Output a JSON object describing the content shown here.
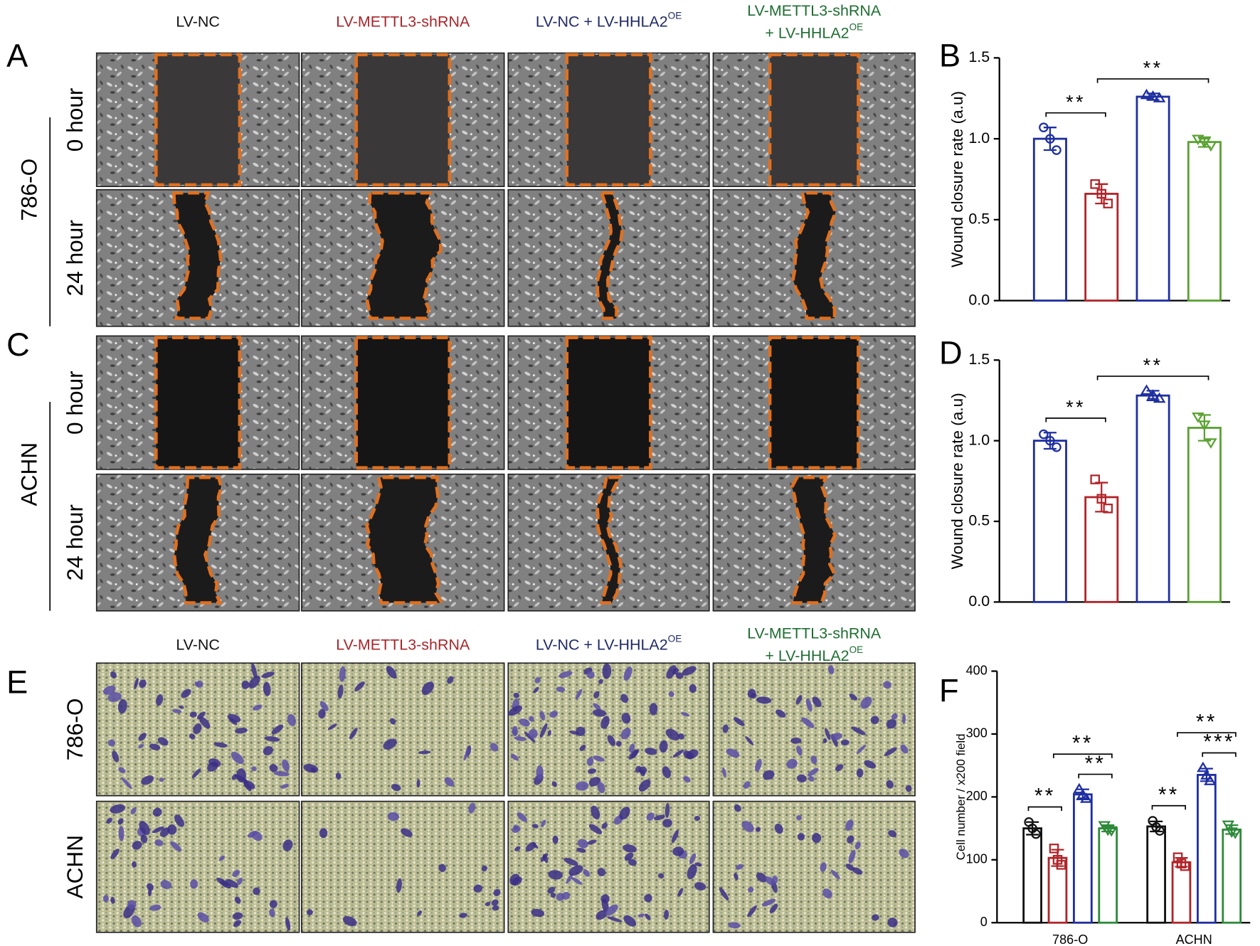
{
  "panel_labels": [
    "A",
    "B",
    "C",
    "D",
    "E",
    "F"
  ],
  "wound_headers": [
    {
      "text": "LV-NC",
      "color": "#111111"
    },
    {
      "text": "LV-METTL3-shRNA",
      "color": "#a8262b"
    },
    {
      "text": "LV-NC + LV-HHLA2",
      "sup": "OE",
      "color": "#1f2a66"
    },
    {
      "lines": [
        {
          "text": "LV-METTL3-shRNA"
        },
        {
          "text": "+ LV-HHLA2",
          "sup": "OE"
        }
      ],
      "color": "#1e6e32"
    }
  ],
  "transwell_headers": [
    {
      "text": "LV-NC",
      "color": "#111111"
    },
    {
      "text": "LV-METTL3-shRNA",
      "color": "#a8262b"
    },
    {
      "text": "LV-NC + LV-HHLA2",
      "sup": "OE",
      "color": "#1f2a66"
    },
    {
      "lines": [
        {
          "text": "LV-METTL3-shRNA"
        },
        {
          "text": "+ LV-HHLA2",
          "sup": "OE"
        }
      ],
      "color": "#1e6e32"
    }
  ],
  "wound_cell_lines": [
    "786-O",
    "ACHN"
  ],
  "time_labels": [
    "0 hour",
    "24 hour"
  ],
  "transwell_cell_lines": [
    "786-O",
    "ACHN"
  ],
  "chart_data": [
    {
      "type": "bar",
      "ylabel": "Wound closure rate (a.u)",
      "ylim": [
        0,
        1.5
      ],
      "yticks": [
        {
          "value": 0,
          "label": "0.0"
        },
        0.5,
        {
          "value": 1,
          "label": "1.0"
        },
        1.5
      ],
      "values": [
        1.0,
        0.66,
        1.26,
        0.98
      ],
      "errors": [
        0.07,
        0.06,
        0.02,
        0.03
      ],
      "points": [
        [
          1.07,
          1.0,
          0.93
        ],
        [
          0.72,
          0.66,
          0.6
        ],
        [
          1.27,
          1.26,
          1.25
        ],
        [
          1.0,
          0.98,
          0.96
        ]
      ],
      "colors": [
        "#1f2fa0",
        "#b0252a",
        "#1f2fa0",
        "#5aa232"
      ],
      "significance": [
        "**",
        "**"
      ]
    },
    {
      "type": "bar",
      "ylabel": "Wound closure rate (a.u)",
      "ylim": [
        0,
        1.5
      ],
      "yticks": [
        {
          "value": 0,
          "label": "0.0"
        },
        0.5,
        {
          "value": 1,
          "label": "1.0"
        },
        1.5
      ],
      "values": [
        1.0,
        0.65,
        1.28,
        1.08
      ],
      "errors": [
        0.05,
        0.09,
        0.03,
        0.08
      ],
      "points": [
        [
          1.04,
          1.0,
          0.96
        ],
        [
          0.76,
          0.64,
          0.58
        ],
        [
          1.31,
          1.28,
          1.26
        ],
        [
          1.15,
          1.1,
          0.99
        ]
      ],
      "colors": [
        "#1f2fa0",
        "#b0252a",
        "#1f2fa0",
        "#5aa232"
      ],
      "significance": [
        "**",
        "**"
      ]
    },
    {
      "type": "grouped_bar",
      "ylabel": "Cell number / x200 field",
      "ylim": [
        0,
        400
      ],
      "yticks": [
        0,
        100,
        200,
        300,
        400
      ],
      "categories": [
        "786-O",
        "ACHN"
      ],
      "series": [
        {
          "color": "#111111",
          "values": [
            150,
            153
          ],
          "errors": [
            10,
            8
          ],
          "points": [
            [
              160,
              150,
              141
            ],
            [
              162,
              152,
              146
            ]
          ]
        },
        {
          "color": "#b0252a",
          "values": [
            103,
            96
          ],
          "errors": [
            13,
            7
          ],
          "points": [
            [
              118,
              100,
              92
            ],
            [
              104,
              94,
              90
            ]
          ]
        },
        {
          "color": "#1f2fa0",
          "values": [
            204,
            235
          ],
          "errors": [
            8,
            10
          ],
          "points": [
            [
              212,
              203,
              197
            ],
            [
              246,
              234,
              225
            ]
          ]
        },
        {
          "color": "#2e8a3a",
          "values": [
            150,
            148
          ],
          "errors": [
            5,
            7
          ],
          "points": [
            [
              155,
              148,
              147
            ],
            [
              156,
              145,
              143
            ]
          ]
        }
      ],
      "significance": [
        [
          "**",
          "**",
          "**"
        ],
        [
          "**",
          "**",
          "***"
        ]
      ]
    }
  ]
}
